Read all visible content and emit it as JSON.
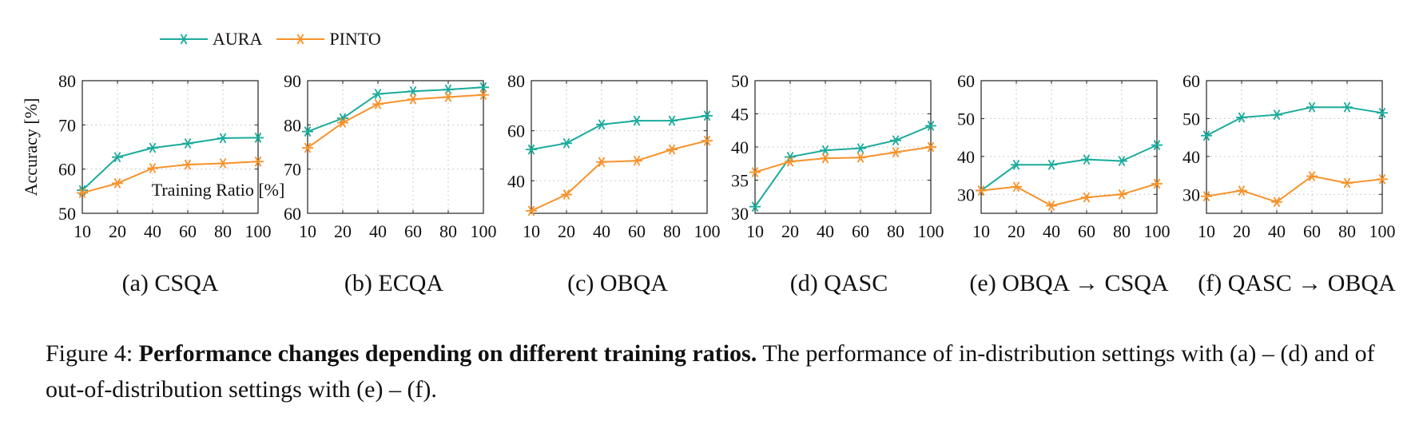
{
  "colors": {
    "aura": "#1aab9b",
    "pinto": "#f7922a"
  },
  "legend": [
    "AURA",
    "PINTO"
  ],
  "chart_data": [
    {
      "type": "line",
      "caption": "(a) CSQA",
      "x": [
        10,
        20,
        40,
        60,
        80,
        100
      ],
      "ylim": [
        50,
        80
      ],
      "yticks": [
        50,
        60,
        70,
        80
      ],
      "ylabel": "Accuracy [%]",
      "xlabel": "Training Ratio [%]",
      "series": [
        {
          "name": "AURA",
          "values": [
            55.2,
            62.7,
            64.8,
            65.8,
            67.0,
            67.1
          ]
        },
        {
          "name": "PINTO",
          "values": [
            54.6,
            56.8,
            60.2,
            61.0,
            61.3,
            61.7
          ]
        }
      ]
    },
    {
      "type": "line",
      "caption": "(b) ECQA",
      "x": [
        10,
        20,
        40,
        60,
        80,
        100
      ],
      "ylim": [
        60,
        90
      ],
      "yticks": [
        60,
        70,
        80,
        90
      ],
      "series": [
        {
          "name": "AURA",
          "values": [
            78.5,
            81.5,
            87.0,
            87.6,
            88.0,
            88.5
          ]
        },
        {
          "name": "PINTO",
          "values": [
            74.8,
            80.5,
            84.7,
            85.8,
            86.3,
            86.8
          ]
        }
      ]
    },
    {
      "type": "line",
      "caption": "(c) OBQA",
      "x": [
        10,
        20,
        40,
        60,
        80,
        100
      ],
      "ylim": [
        27,
        80
      ],
      "yticks": [
        40,
        60,
        80
      ],
      "series": [
        {
          "name": "AURA",
          "values": [
            52.5,
            55.0,
            62.5,
            64.0,
            64.0,
            66.0
          ]
        },
        {
          "name": "PINTO",
          "values": [
            28.0,
            34.5,
            47.5,
            48.0,
            52.5,
            56.0
          ]
        }
      ]
    },
    {
      "type": "line",
      "caption": "(d) QASC",
      "x": [
        10,
        20,
        40,
        60,
        80,
        100
      ],
      "ylim": [
        30,
        50
      ],
      "yticks": [
        30,
        35,
        40,
        45,
        50
      ],
      "series": [
        {
          "name": "AURA",
          "values": [
            31.0,
            38.5,
            39.5,
            39.8,
            41.0,
            43.2
          ]
        },
        {
          "name": "PINTO",
          "values": [
            36.2,
            37.8,
            38.3,
            38.4,
            39.2,
            40.0
          ]
        }
      ]
    },
    {
      "type": "line",
      "caption": "(e) OBQA → CSQA",
      "x": [
        10,
        20,
        40,
        60,
        80,
        100
      ],
      "ylim": [
        25,
        60
      ],
      "yticks": [
        30,
        40,
        50,
        60
      ],
      "series": [
        {
          "name": "AURA",
          "values": [
            31.0,
            37.8,
            37.8,
            39.2,
            38.8,
            43.0
          ]
        },
        {
          "name": "PINTO",
          "values": [
            31.0,
            32.0,
            27.0,
            29.2,
            30.0,
            32.8
          ]
        }
      ]
    },
    {
      "type": "line",
      "caption": "(f) QASC → OBQA",
      "x": [
        10,
        20,
        40,
        60,
        80,
        100
      ],
      "ylim": [
        25,
        60
      ],
      "yticks": [
        30,
        40,
        50,
        60
      ],
      "series": [
        {
          "name": "AURA",
          "values": [
            45.5,
            50.3,
            51.0,
            53.0,
            53.0,
            51.5
          ]
        },
        {
          "name": "PINTO",
          "values": [
            29.5,
            31.0,
            28.0,
            34.8,
            33.0,
            34.0
          ]
        }
      ]
    }
  ],
  "figure_caption": {
    "prefix": "Figure 4: ",
    "bold": "Performance changes depending on different training ratios.",
    "rest": " The performance of in-distribution settings with (a) – (d) and of out-of-distribution settings with (e) – (f)."
  }
}
